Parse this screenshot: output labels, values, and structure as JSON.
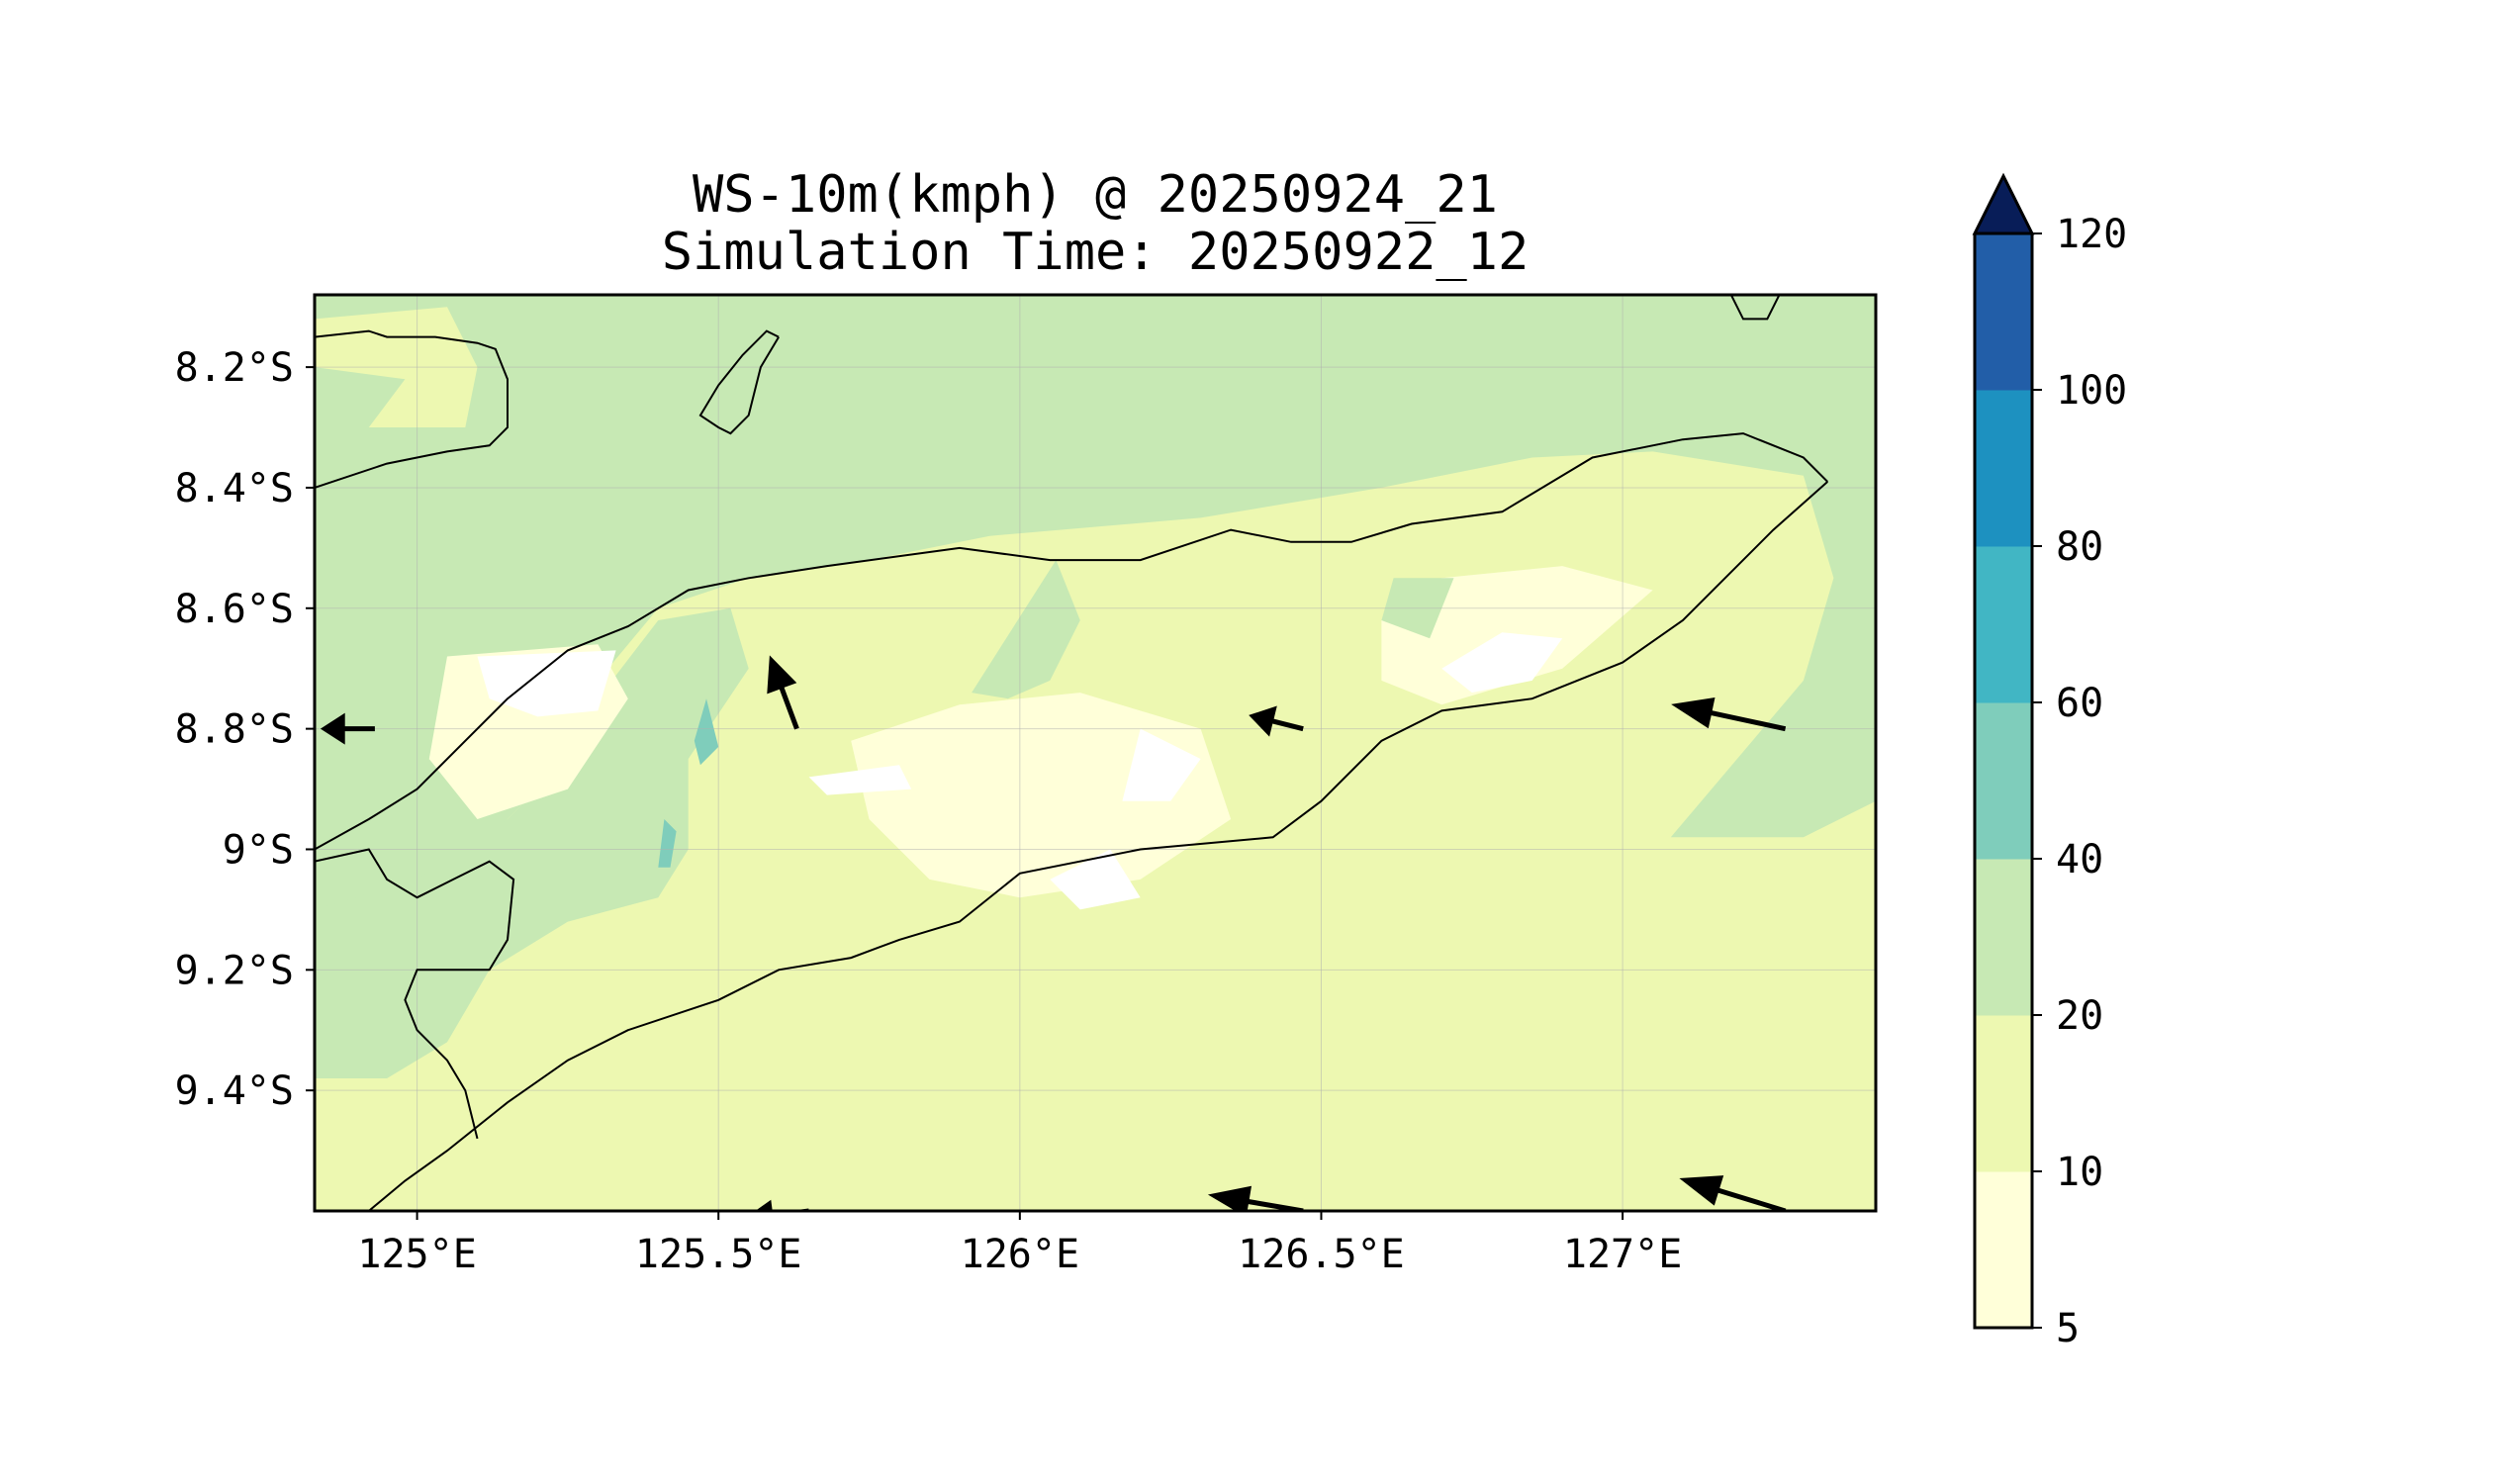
{
  "chart_data": {
    "type": "heatmap",
    "title_line1": "WS-10m(kmph) @ 20250924_21",
    "title_line2": "Simulation Time: 20250922_12",
    "xlabel": "",
    "ylabel": "",
    "xlim": [
      124.83,
      127.42
    ],
    "ylim": [
      -9.6,
      -8.08
    ],
    "x_ticks": [
      {
        "value": 125.0,
        "label": "125°E"
      },
      {
        "value": 125.5,
        "label": "125.5°E"
      },
      {
        "value": 126.0,
        "label": "126°E"
      },
      {
        "value": 126.5,
        "label": "126.5°E"
      },
      {
        "value": 127.0,
        "label": "127°E"
      }
    ],
    "y_ticks": [
      {
        "value": -8.2,
        "label": "8.2°S"
      },
      {
        "value": -8.4,
        "label": "8.4°S"
      },
      {
        "value": -8.6,
        "label": "8.6°S"
      },
      {
        "value": -8.8,
        "label": "8.8°S"
      },
      {
        "value": -9.0,
        "label": "9°S"
      },
      {
        "value": -9.2,
        "label": "9.2°S"
      },
      {
        "value": -9.4,
        "label": "9.4°S"
      }
    ],
    "grid": true,
    "colorbar": {
      "levels": [
        5,
        10,
        20,
        40,
        60,
        80,
        100,
        120
      ],
      "labels": [
        "5",
        "10",
        "20",
        "40",
        "60",
        "80",
        "100",
        "120"
      ],
      "colors": [
        "#ffffd9",
        "#edf8b1",
        "#c7e9b4",
        "#7fcdbb",
        "#41b6c4",
        "#1d91c0",
        "#225ea8",
        "#253494"
      ],
      "extend_color": "#081d58",
      "extend": "max"
    },
    "background_level_color": "#edf8b1",
    "regions": [
      {
        "level": "20-40",
        "color": "#c7e9b4",
        "points": [
          [
            124.83,
            -8.08
          ],
          [
            127.42,
            -8.08
          ],
          [
            127.42,
            -8.92
          ],
          [
            127.3,
            -8.98
          ],
          [
            127.08,
            -8.98
          ],
          [
            127.3,
            -8.72
          ],
          [
            127.35,
            -8.55
          ],
          [
            127.3,
            -8.38
          ],
          [
            127.05,
            -8.34
          ],
          [
            126.85,
            -8.35
          ],
          [
            126.6,
            -8.4
          ],
          [
            126.3,
            -8.45
          ],
          [
            125.95,
            -8.48
          ],
          [
            125.75,
            -8.52
          ],
          [
            125.55,
            -8.55
          ],
          [
            125.4,
            -8.6
          ],
          [
            125.3,
            -8.72
          ],
          [
            125.2,
            -8.9
          ],
          [
            125.1,
            -9.0
          ],
          [
            125.0,
            -9.08
          ],
          [
            124.83,
            -9.2
          ],
          [
            124.83,
            -8.1
          ]
        ]
      },
      {
        "level": "10-20",
        "color": "#edf8b1",
        "points": [
          [
            124.83,
            -8.12
          ],
          [
            125.05,
            -8.1
          ],
          [
            125.1,
            -8.2
          ],
          [
            125.08,
            -8.3
          ],
          [
            124.92,
            -8.3
          ],
          [
            124.98,
            -8.22
          ],
          [
            124.83,
            -8.2
          ]
        ]
      },
      {
        "level": "20-40",
        "color": "#c7e9b4",
        "points": [
          [
            125.4,
            -8.62
          ],
          [
            125.52,
            -8.6
          ],
          [
            125.55,
            -8.7
          ],
          [
            125.45,
            -8.85
          ],
          [
            125.45,
            -9.0
          ],
          [
            125.4,
            -9.08
          ],
          [
            125.25,
            -9.12
          ],
          [
            125.12,
            -9.2
          ],
          [
            125.05,
            -9.32
          ],
          [
            124.95,
            -9.38
          ],
          [
            124.83,
            -9.38
          ],
          [
            124.83,
            -9.1
          ],
          [
            125.0,
            -9.05
          ],
          [
            125.15,
            -8.95
          ],
          [
            125.25,
            -8.85
          ],
          [
            125.3,
            -8.75
          ]
        ]
      },
      {
        "level": "10-20",
        "color": "#edf8b1",
        "points": [
          [
            125.72,
            -8.62
          ],
          [
            125.85,
            -8.55
          ],
          [
            125.95,
            -8.6
          ],
          [
            125.85,
            -8.72
          ],
          [
            125.7,
            -8.74
          ],
          [
            125.66,
            -8.7
          ]
        ]
      },
      {
        "level": "5-10",
        "color": "#ffffd9",
        "points": [
          [
            125.72,
            -8.82
          ],
          [
            125.9,
            -8.76
          ],
          [
            126.1,
            -8.74
          ],
          [
            126.3,
            -8.8
          ],
          [
            126.35,
            -8.95
          ],
          [
            126.2,
            -9.05
          ],
          [
            126.0,
            -9.08
          ],
          [
            125.85,
            -9.05
          ],
          [
            125.75,
            -8.95
          ]
        ]
      },
      {
        "level": "5-10",
        "color": "#ffffd9",
        "points": [
          [
            126.6,
            -8.62
          ],
          [
            126.7,
            -8.55
          ],
          [
            126.9,
            -8.53
          ],
          [
            127.05,
            -8.57
          ],
          [
            126.9,
            -8.7
          ],
          [
            126.7,
            -8.76
          ],
          [
            126.6,
            -8.72
          ]
        ]
      },
      {
        "level": "5-10",
        "color": "#ffffd9",
        "points": [
          [
            125.05,
            -8.68
          ],
          [
            125.3,
            -8.66
          ],
          [
            125.35,
            -8.75
          ],
          [
            125.25,
            -8.9
          ],
          [
            125.1,
            -8.95
          ],
          [
            125.02,
            -8.85
          ]
        ]
      },
      {
        "level": "0-5",
        "color": "#ffffff",
        "points": [
          [
            125.1,
            -8.68
          ],
          [
            125.33,
            -8.67
          ],
          [
            125.3,
            -8.77
          ],
          [
            125.2,
            -8.78
          ],
          [
            125.12,
            -8.75
          ]
        ]
      },
      {
        "level": "0-5",
        "color": "#ffffff",
        "points": [
          [
            126.2,
            -8.8
          ],
          [
            126.3,
            -8.85
          ],
          [
            126.25,
            -8.92
          ],
          [
            126.17,
            -8.92
          ]
        ]
      },
      {
        "level": "0-5",
        "color": "#ffffff",
        "points": [
          [
            125.65,
            -8.88
          ],
          [
            125.8,
            -8.86
          ],
          [
            125.82,
            -8.9
          ],
          [
            125.68,
            -8.91
          ]
        ]
      },
      {
        "level": "0-5",
        "color": "#ffffff",
        "points": [
          [
            126.7,
            -8.7
          ],
          [
            126.8,
            -8.64
          ],
          [
            126.9,
            -8.65
          ],
          [
            126.85,
            -8.72
          ],
          [
            126.75,
            -8.74
          ]
        ]
      },
      {
        "level": "0-5",
        "color": "#ffffff",
        "points": [
          [
            126.05,
            -9.05
          ],
          [
            126.15,
            -9.0
          ],
          [
            126.2,
            -9.08
          ],
          [
            126.1,
            -9.1
          ]
        ]
      },
      {
        "level": "40-60",
        "color": "#7fcdbb",
        "points": [
          [
            125.48,
            -8.75
          ],
          [
            125.5,
            -8.83
          ],
          [
            125.47,
            -8.86
          ],
          [
            125.46,
            -8.82
          ]
        ]
      },
      {
        "level": "40-60",
        "color": "#7fcdbb",
        "points": [
          [
            125.41,
            -8.95
          ],
          [
            125.43,
            -8.97
          ],
          [
            125.42,
            -9.03
          ],
          [
            125.4,
            -9.03
          ]
        ]
      },
      {
        "level": "20-40",
        "color": "#c7e9b4",
        "points": [
          [
            126.62,
            -8.55
          ],
          [
            126.72,
            -8.55
          ],
          [
            126.68,
            -8.65
          ],
          [
            126.6,
            -8.62
          ]
        ]
      },
      {
        "level": "20-40",
        "color": "#c7e9b4",
        "points": [
          [
            126.06,
            -8.52
          ],
          [
            126.1,
            -8.62
          ],
          [
            126.05,
            -8.72
          ],
          [
            125.98,
            -8.75
          ],
          [
            125.92,
            -8.74
          ]
        ]
      }
    ],
    "coastlines": [
      {
        "name": "timor-north-coast",
        "points": [
          [
            124.83,
            -9.0
          ],
          [
            124.92,
            -8.95
          ],
          [
            125.0,
            -8.9
          ],
          [
            125.08,
            -8.82
          ],
          [
            125.15,
            -8.75
          ],
          [
            125.25,
            -8.67
          ],
          [
            125.35,
            -8.63
          ],
          [
            125.45,
            -8.57
          ],
          [
            125.55,
            -8.55
          ],
          [
            125.68,
            -8.53
          ],
          [
            125.9,
            -8.5
          ],
          [
            126.05,
            -8.52
          ],
          [
            126.2,
            -8.52
          ],
          [
            126.35,
            -8.47
          ],
          [
            126.45,
            -8.49
          ],
          [
            126.55,
            -8.49
          ],
          [
            126.65,
            -8.46
          ],
          [
            126.8,
            -8.44
          ],
          [
            126.95,
            -8.35
          ],
          [
            127.1,
            -8.32
          ],
          [
            127.2,
            -8.31
          ],
          [
            127.3,
            -8.35
          ],
          [
            127.34,
            -8.39
          ]
        ]
      },
      {
        "name": "timor-south-coast",
        "points": [
          [
            127.34,
            -8.39
          ],
          [
            127.25,
            -8.47
          ],
          [
            127.1,
            -8.62
          ],
          [
            127.0,
            -8.69
          ],
          [
            126.85,
            -8.75
          ],
          [
            126.7,
            -8.77
          ],
          [
            126.6,
            -8.82
          ],
          [
            126.5,
            -8.92
          ],
          [
            126.42,
            -8.98
          ],
          [
            126.2,
            -9.0
          ],
          [
            126.0,
            -9.04
          ],
          [
            125.9,
            -9.12
          ],
          [
            125.8,
            -9.15
          ],
          [
            125.72,
            -9.18
          ],
          [
            125.6,
            -9.2
          ],
          [
            125.5,
            -9.25
          ],
          [
            125.35,
            -9.3
          ],
          [
            125.25,
            -9.35
          ],
          [
            125.15,
            -9.42
          ],
          [
            125.05,
            -9.5
          ],
          [
            124.98,
            -9.55
          ],
          [
            124.92,
            -9.6
          ]
        ]
      },
      {
        "name": "oecusse-coast",
        "points": [
          [
            124.83,
            -9.02
          ],
          [
            124.92,
            -9.0
          ],
          [
            124.95,
            -9.05
          ],
          [
            125.0,
            -9.08
          ],
          [
            125.06,
            -9.05
          ],
          [
            125.12,
            -9.02
          ],
          [
            125.16,
            -9.05
          ],
          [
            125.15,
            -9.15
          ],
          [
            125.12,
            -9.2
          ],
          [
            125.08,
            -9.2
          ],
          [
            125.0,
            -9.2
          ],
          [
            124.98,
            -9.25
          ],
          [
            125.0,
            -9.3
          ],
          [
            125.05,
            -9.35
          ],
          [
            125.08,
            -9.4
          ],
          [
            125.1,
            -9.48
          ]
        ]
      },
      {
        "name": "atauro-island",
        "points": [
          [
            125.6,
            -8.15
          ],
          [
            125.57,
            -8.2
          ],
          [
            125.55,
            -8.28
          ],
          [
            125.52,
            -8.31
          ],
          [
            125.5,
            -8.3
          ],
          [
            125.47,
            -8.28
          ],
          [
            125.5,
            -8.23
          ],
          [
            125.54,
            -8.18
          ],
          [
            125.58,
            -8.14
          ],
          [
            125.6,
            -8.15
          ]
        ]
      },
      {
        "name": "alor-coast",
        "points": [
          [
            124.83,
            -8.4
          ],
          [
            124.95,
            -8.36
          ],
          [
            125.05,
            -8.34
          ],
          [
            125.12,
            -8.33
          ],
          [
            125.15,
            -8.3
          ],
          [
            125.15,
            -8.22
          ],
          [
            125.13,
            -8.17
          ],
          [
            125.1,
            -8.16
          ],
          [
            125.03,
            -8.15
          ],
          [
            124.95,
            -8.15
          ],
          [
            124.92,
            -8.14
          ],
          [
            124.83,
            -8.15
          ]
        ]
      },
      {
        "name": "wetar-tip",
        "points": [
          [
            127.18,
            -8.08
          ],
          [
            127.2,
            -8.12
          ],
          [
            127.24,
            -8.12
          ],
          [
            127.26,
            -8.08
          ]
        ]
      }
    ],
    "wind_vectors": [
      {
        "lon": 125.63,
        "lat": -8.8,
        "u": -0.5,
        "v": 1.35
      },
      {
        "lon": 124.93,
        "lat": -8.8,
        "u": -1.0,
        "v": 0.0
      },
      {
        "lon": 126.47,
        "lat": -8.8,
        "u": -1.0,
        "v": 0.25
      },
      {
        "lon": 127.27,
        "lat": -8.8,
        "u": -2.1,
        "v": 0.45
      },
      {
        "lon": 125.65,
        "lat": -9.6,
        "u": -1.2,
        "v": -0.15
      },
      {
        "lon": 126.47,
        "lat": -9.6,
        "u": -1.75,
        "v": 0.3
      },
      {
        "lon": 127.27,
        "lat": -9.6,
        "u": -1.95,
        "v": 0.6
      }
    ]
  }
}
